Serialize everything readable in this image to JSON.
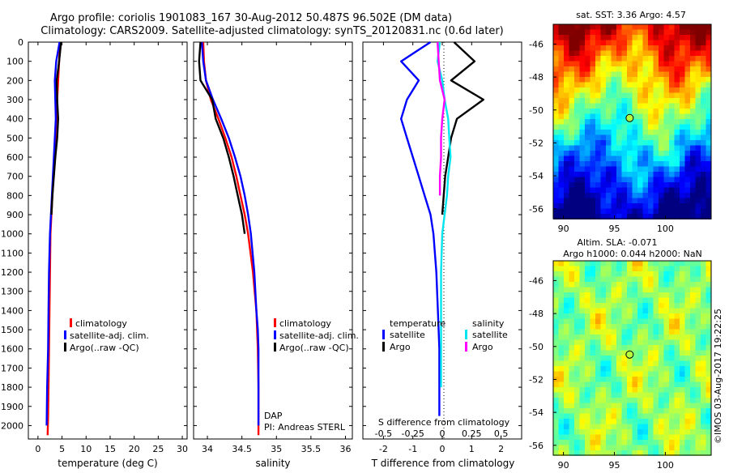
{
  "header": {
    "line1": "Argo profile: coriolis 1901083_167 30-Aug-2012 50.487S 96.502E (DM data)",
    "line2": "Climatology: CARS2009. Satellite-adjusted climatology: synTS_20120831.nc (0.6d later)"
  },
  "colors": {
    "climatology": "#ff0000",
    "satellite": "#0000ff",
    "argo": "#000000",
    "temp_satellite": "#0000ff",
    "temp_argo": "#000000",
    "sal_satellite": "#00e5ee",
    "sal_argo": "#ff00ff"
  },
  "depth_axis": {
    "ticks": [
      "0",
      "100",
      "200",
      "300",
      "400",
      "500",
      "600",
      "700",
      "800",
      "900",
      "1000",
      "1100",
      "1200",
      "1300",
      "1400",
      "1500",
      "1600",
      "1700",
      "1800",
      "1900",
      "2000"
    ]
  },
  "legends": {
    "climatology": "climatology",
    "satellite_adj": "satellite-adj. clim.",
    "argo": "Argo(..raw -QC)",
    "temperature": "temperature",
    "salinity": "salinity",
    "satellite": "satellite",
    "argo_short": "Argo"
  },
  "credits": {
    "dap": "DAP",
    "pi": "PI: Andreas STERL",
    "imos": "©IMOS 03-Aug-2017 19:22:25"
  },
  "map_titles": {
    "sst": "sat. SST: 3.36 Argo: 4.57",
    "sla1": "Altim. SLA: -0.071",
    "sla2": "Argo h1000: 0.044 h2000: NaN"
  },
  "chart_data": [
    {
      "type": "line",
      "xlabel": "temperature (deg C)",
      "ylabel": "",
      "xlim": [
        -2,
        31
      ],
      "ylim": [
        2070,
        0
      ],
      "xticks": [
        "0",
        "5",
        "10",
        "15",
        "20",
        "25",
        "30"
      ],
      "series": [
        {
          "name": "climatology",
          "x": [
            4.6,
            4.4,
            4.2,
            4.0,
            3.8,
            3.6,
            3.4,
            3.2,
            3.0,
            2.8,
            2.6,
            2.5,
            2.4,
            2.3,
            2.2,
            2.1,
            2.0
          ],
          "y": [
            0,
            100,
            200,
            300,
            400,
            500,
            600,
            700,
            800,
            900,
            1000,
            1200,
            1400,
            1600,
            1800,
            1950,
            2050
          ]
        },
        {
          "name": "satellite-adj. clim.",
          "x": [
            4.5,
            3.8,
            3.5,
            3.6,
            3.7,
            3.5,
            3.3,
            3.1,
            2.9,
            2.7,
            2.5,
            2.3,
            2.2,
            2.1,
            1.9,
            1.8
          ],
          "y": [
            0,
            100,
            200,
            300,
            400,
            500,
            600,
            700,
            800,
            900,
            1000,
            1200,
            1400,
            1600,
            1800,
            2000
          ]
        },
        {
          "name": "Argo(..raw -QC)",
          "x": [
            4.8,
            4.4,
            3.9,
            4.0,
            4.2,
            4.0,
            3.6,
            3.3,
            3.0,
            2.8
          ],
          "y": [
            0,
            100,
            200,
            300,
            400,
            500,
            600,
            700,
            800,
            900
          ]
        }
      ]
    },
    {
      "type": "line",
      "xlabel": "salinity",
      "ylabel": "",
      "xlim": [
        33.8,
        36.1
      ],
      "ylim": [
        2070,
        0
      ],
      "xticks": [
        "34",
        "34.5",
        "35",
        "35.5",
        "36"
      ],
      "series": [
        {
          "name": "climatology",
          "x": [
            33.94,
            33.95,
            33.98,
            34.05,
            34.16,
            34.26,
            34.35,
            34.42,
            34.48,
            34.54,
            34.59,
            34.66,
            34.71,
            34.73,
            34.74,
            34.74,
            34.74
          ],
          "y": [
            0,
            100,
            200,
            300,
            400,
            500,
            600,
            700,
            800,
            900,
            1000,
            1200,
            1400,
            1600,
            1800,
            1900,
            2050
          ]
        },
        {
          "name": "satellite-adj. clim.",
          "x": [
            33.92,
            33.94,
            33.98,
            34.08,
            34.2,
            34.31,
            34.4,
            34.48,
            34.54,
            34.59,
            34.63,
            34.68,
            34.71,
            34.73,
            34.74,
            34.74,
            34.74,
            34.74
          ],
          "y": [
            0,
            100,
            200,
            300,
            400,
            500,
            600,
            700,
            800,
            900,
            1000,
            1200,
            1400,
            1500,
            1600,
            1800,
            1900,
            2000
          ]
        },
        {
          "name": "Argo(..raw -QC)",
          "x": [
            33.9,
            33.88,
            33.9,
            34.07,
            34.12,
            34.23,
            34.31,
            34.38,
            34.44,
            34.5,
            34.54
          ],
          "y": [
            0,
            100,
            200,
            300,
            400,
            500,
            600,
            700,
            800,
            900,
            1000
          ]
        }
      ]
    },
    {
      "type": "line",
      "xlabel": "T difference from climatology",
      "xlabel_top": "S difference from climatology",
      "ylabel": "",
      "xlim": [
        -2.7,
        2.7
      ],
      "xlim_top": [
        -0.675,
        0.675
      ],
      "ylim": [
        2070,
        0
      ],
      "xticks": [
        "-2",
        "-1",
        "0",
        "1",
        "2"
      ],
      "xticks_top": [
        "-0.5",
        "-0.25",
        "0",
        "0.25",
        "0.5"
      ],
      "series": [
        {
          "name": "temperature satellite",
          "x": [
            -0.4,
            -1.4,
            -0.8,
            -1.2,
            -1.4,
            -1.2,
            -1.0,
            -0.8,
            -0.6,
            -0.4,
            -0.3,
            -0.2,
            -0.15,
            -0.1,
            -0.1,
            -0.1
          ],
          "y": [
            0,
            100,
            200,
            300,
            400,
            500,
            600,
            700,
            800,
            900,
            1000,
            1200,
            1400,
            1600,
            1800,
            1950
          ]
        },
        {
          "name": "temperature Argo",
          "x": [
            0.4,
            1.1,
            0.3,
            1.4,
            0.5,
            0.3,
            0.2,
            0.1,
            0.05,
            0.0
          ],
          "y": [
            0,
            100,
            200,
            300,
            400,
            500,
            600,
            700,
            800,
            900
          ]
        },
        {
          "name": "salinity satellite",
          "x": [
            -0.02,
            -0.04,
            0.0,
            0.02,
            0.05,
            0.06,
            0.07,
            0.05,
            0.04,
            0.02,
            0.0,
            -0.01,
            -0.01,
            -0.01,
            -0.01
          ],
          "y": [
            0,
            100,
            200,
            300,
            400,
            500,
            600,
            700,
            800,
            900,
            1000,
            1200,
            1400,
            1600,
            1800
          ]
        },
        {
          "name": "salinity Argo",
          "x": [
            -0.04,
            -0.03,
            -0.02,
            0.02,
            0.0,
            -0.01,
            -0.01,
            -0.02,
            -0.02
          ],
          "y": [
            0,
            100,
            200,
            300,
            400,
            500,
            600,
            700,
            800
          ]
        }
      ]
    },
    {
      "type": "heatmap",
      "title": "sat. SST: 3.36 Argo: 4.57",
      "xlim": [
        89,
        104.5
      ],
      "ylim": [
        -56.6,
        -44.8
      ],
      "xticks": [
        "90",
        "95",
        "100"
      ],
      "yticks": [
        "-46",
        "-48",
        "-50",
        "-52",
        "-54",
        "-56"
      ],
      "marker": {
        "lon": 96.5,
        "lat": -50.49
      }
    },
    {
      "type": "heatmap",
      "title": "Altim. SLA: -0.071",
      "xlim": [
        89,
        104.5
      ],
      "ylim": [
        -56.6,
        -44.8
      ],
      "xticks": [
        "90",
        "95",
        "100"
      ],
      "yticks": [
        "-46",
        "-48",
        "-50",
        "-52",
        "-54",
        "-56"
      ],
      "marker": {
        "lon": 96.5,
        "lat": -50.49
      }
    }
  ]
}
